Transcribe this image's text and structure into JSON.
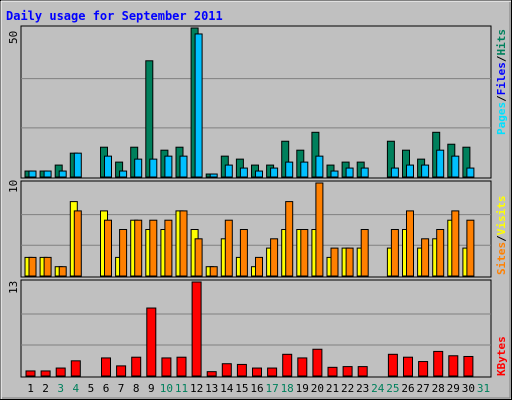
{
  "title": "Daily usage for September 2011",
  "colors": {
    "frame_bg": "#C0C0C0",
    "plot_bg": "#C0C0C0",
    "title": "#0000FF",
    "hits": "#00805C",
    "files": "#00C0FF",
    "pages": "#00E0FF",
    "visits": "#FFFF00",
    "sites": "#FF8000",
    "kbytes": "#FF0000",
    "weekday_label": "#000000",
    "weekend_label": "#00805C"
  },
  "axis_labels": {
    "top": {
      "pages": "Pages",
      "files": "Files",
      "hits": "Hits",
      "sep": "/"
    },
    "middle": {
      "sites": "Sites",
      "visits": "Visits",
      "sep": "/"
    },
    "bottom": {
      "kbytes": "KBytes"
    }
  },
  "chart_data": [
    {
      "type": "bar",
      "panel": "hits-files-pages",
      "y_max_label": "50",
      "ylim": [
        0,
        50
      ],
      "categories": [
        "1",
        "2",
        "3",
        "4",
        "5",
        "6",
        "7",
        "8",
        "9",
        "10",
        "11",
        "12",
        "13",
        "14",
        "15",
        "16",
        "17",
        "18",
        "19",
        "20",
        "21",
        "22",
        "23",
        "24",
        "25",
        "26",
        "27",
        "28",
        "29",
        "30",
        "31"
      ],
      "series": [
        {
          "name": "Hits",
          "values": [
            2,
            2,
            4,
            8,
            0,
            10,
            5,
            10,
            39,
            9,
            10,
            50,
            1,
            7,
            6,
            4,
            4,
            12,
            9,
            15,
            4,
            5,
            5,
            0,
            12,
            9,
            6,
            15,
            11,
            10,
            0
          ]
        },
        {
          "name": "Files",
          "values": [
            2,
            2,
            2,
            8,
            0,
            7,
            2,
            6,
            6,
            7,
            7,
            48,
            1,
            4,
            3,
            2,
            3,
            5,
            5,
            7,
            2,
            3,
            3,
            0,
            3,
            4,
            4,
            9,
            7,
            3,
            0
          ]
        }
      ]
    },
    {
      "type": "bar",
      "panel": "visits-sites",
      "y_max_label": "10",
      "ylim": [
        0,
        10
      ],
      "categories": [
        "1",
        "2",
        "3",
        "4",
        "5",
        "6",
        "7",
        "8",
        "9",
        "10",
        "11",
        "12",
        "13",
        "14",
        "15",
        "16",
        "17",
        "18",
        "19",
        "20",
        "21",
        "22",
        "23",
        "24",
        "25",
        "26",
        "27",
        "28",
        "29",
        "30",
        "31"
      ],
      "series": [
        {
          "name": "Visits",
          "values": [
            2,
            2,
            1,
            8,
            0,
            7,
            2,
            6,
            5,
            5,
            7,
            5,
            1,
            4,
            2,
            1,
            3,
            5,
            5,
            5,
            2,
            3,
            3,
            0,
            3,
            5,
            3,
            4,
            6,
            3,
            0
          ]
        },
        {
          "name": "Sites",
          "values": [
            2,
            2,
            1,
            7,
            0,
            6,
            5,
            6,
            6,
            6,
            7,
            4,
            1,
            6,
            5,
            2,
            4,
            8,
            5,
            10,
            3,
            3,
            5,
            0,
            5,
            7,
            4,
            5,
            7,
            6,
            0
          ]
        }
      ]
    },
    {
      "type": "bar",
      "panel": "kbytes",
      "y_max_label": "13",
      "ylim": [
        0,
        13
      ],
      "categories": [
        "1",
        "2",
        "3",
        "4",
        "5",
        "6",
        "7",
        "8",
        "9",
        "10",
        "11",
        "12",
        "13",
        "14",
        "15",
        "16",
        "17",
        "18",
        "19",
        "20",
        "21",
        "22",
        "23",
        "24",
        "25",
        "26",
        "27",
        "28",
        "29",
        "30",
        "31"
      ],
      "series": [
        {
          "name": "KBytes",
          "values": [
            0.7,
            0.7,
            1.1,
            2.1,
            0,
            2.5,
            1.4,
            2.6,
            9.4,
            2.5,
            2.6,
            13,
            0.6,
            1.7,
            1.6,
            1.1,
            1.1,
            3.0,
            2.5,
            3.7,
            1.2,
            1.3,
            1.3,
            0,
            3.0,
            2.6,
            2.0,
            3.4,
            2.8,
            2.7,
            0
          ]
        }
      ]
    }
  ],
  "x_ticks": [
    {
      "label": "1",
      "weekend": false
    },
    {
      "label": "2",
      "weekend": false
    },
    {
      "label": "3",
      "weekend": true
    },
    {
      "label": "4",
      "weekend": true
    },
    {
      "label": "5",
      "weekend": false
    },
    {
      "label": "6",
      "weekend": false
    },
    {
      "label": "7",
      "weekend": false
    },
    {
      "label": "8",
      "weekend": false
    },
    {
      "label": "9",
      "weekend": false
    },
    {
      "label": "10",
      "weekend": true
    },
    {
      "label": "11",
      "weekend": true
    },
    {
      "label": "12",
      "weekend": false
    },
    {
      "label": "13",
      "weekend": false
    },
    {
      "label": "14",
      "weekend": false
    },
    {
      "label": "15",
      "weekend": false
    },
    {
      "label": "16",
      "weekend": false
    },
    {
      "label": "17",
      "weekend": true
    },
    {
      "label": "18",
      "weekend": true
    },
    {
      "label": "19",
      "weekend": false
    },
    {
      "label": "20",
      "weekend": false
    },
    {
      "label": "21",
      "weekend": false
    },
    {
      "label": "22",
      "weekend": false
    },
    {
      "label": "23",
      "weekend": false
    },
    {
      "label": "24",
      "weekend": true
    },
    {
      "label": "25",
      "weekend": true
    },
    {
      "label": "26",
      "weekend": false
    },
    {
      "label": "27",
      "weekend": false
    },
    {
      "label": "28",
      "weekend": false
    },
    {
      "label": "29",
      "weekend": false
    },
    {
      "label": "30",
      "weekend": false
    },
    {
      "label": "31",
      "weekend": true
    }
  ]
}
